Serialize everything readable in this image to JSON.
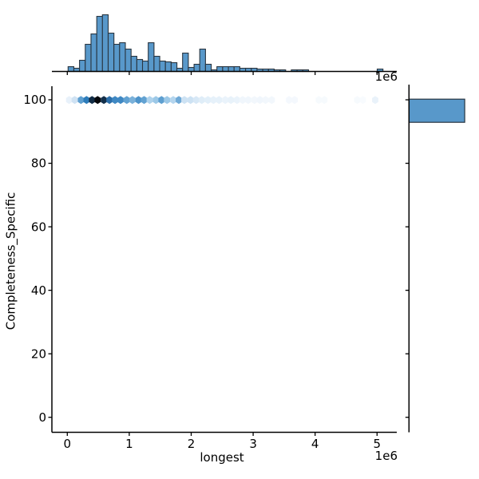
{
  "figure": {
    "background": "#ffffff"
  },
  "palette": {
    "bar_fill": "#5898ca",
    "bar_edge": "#293540",
    "axis_color": "#000000",
    "text_color": "#000000"
  },
  "axes": {
    "xlabel": "longest",
    "ylabel": "Completeness_Specific",
    "x_offset_text": "1e6",
    "top_marginal_offset_text": "1e6",
    "x_tick_labels": [
      "0",
      "1",
      "2",
      "3",
      "4",
      "5"
    ],
    "x_tick_values": [
      0,
      1,
      2,
      3,
      4,
      5
    ],
    "y_tick_labels": [
      "0",
      "20",
      "40",
      "60",
      "80",
      "100"
    ],
    "y_tick_values": [
      0,
      20,
      40,
      60,
      80,
      100
    ],
    "x_unit_multiplier": "1e6",
    "x_range": [
      -0.25,
      5.32
    ],
    "y_range": [
      -4.7,
      104.3
    ],
    "grid": "off",
    "legend": "none",
    "title": ""
  },
  "chart_data": [
    {
      "type": "scatter",
      "subtype": "hexbin_row",
      "name": "joint-hexbin",
      "xlabel": "longest",
      "ylabel": "Completeness_Specific",
      "x_units": "1e6",
      "y_value": 100,
      "points": [
        [
          0.03,
          "#e8f1fa"
        ],
        [
          0.12,
          "#cfe2f3"
        ],
        [
          0.22,
          "#5e9fd0"
        ],
        [
          0.31,
          "#2d7cba"
        ],
        [
          0.4,
          "#112c46"
        ],
        [
          0.49,
          "#06090d"
        ],
        [
          0.59,
          "#14304b"
        ],
        [
          0.68,
          "#2c6ea9"
        ],
        [
          0.77,
          "#3f88c3"
        ],
        [
          0.86,
          "#3f88c3"
        ],
        [
          0.96,
          "#62a2d2"
        ],
        [
          1.05,
          "#7ab1da"
        ],
        [
          1.15,
          "#4e94ca"
        ],
        [
          1.24,
          "#62a2d2"
        ],
        [
          1.33,
          "#aed2ec"
        ],
        [
          1.43,
          "#9cc8e7"
        ],
        [
          1.52,
          "#5e9fd0"
        ],
        [
          1.61,
          "#9cc8e7"
        ],
        [
          1.71,
          "#b4d5ee"
        ],
        [
          1.8,
          "#6fa9d6"
        ],
        [
          1.89,
          "#cde2f3"
        ],
        [
          1.99,
          "#cde2f3"
        ],
        [
          2.08,
          "#d7e8f6"
        ],
        [
          2.17,
          "#dfedf8"
        ],
        [
          2.27,
          "#e2eff9"
        ],
        [
          2.36,
          "#e6f1fa"
        ],
        [
          2.45,
          "#e6f1fa"
        ],
        [
          2.55,
          "#eaf3fb"
        ],
        [
          2.64,
          "#e8f2fa"
        ],
        [
          2.74,
          "#eaf3fb"
        ],
        [
          2.83,
          "#f0f6fc"
        ],
        [
          2.92,
          "#f0f6fc"
        ],
        [
          3.02,
          "#f2f7fc"
        ],
        [
          3.11,
          "#f0f6fc"
        ],
        [
          3.2,
          "#f2f7fc"
        ],
        [
          3.3,
          "#f2f7fc"
        ],
        [
          3.58,
          "#f4f8fd"
        ],
        [
          3.67,
          "#f4f8fd"
        ],
        [
          4.06,
          "#f6fafd"
        ],
        [
          4.15,
          "#f6fafd"
        ],
        [
          4.68,
          "#f6fafd"
        ],
        [
          4.77,
          "#f8fbfe"
        ],
        [
          4.97,
          "#e9f2fa"
        ]
      ]
    },
    {
      "type": "bar",
      "subtype": "histogram",
      "name": "top-marginal-histogram",
      "orientation": "vertical",
      "variable": "longest",
      "x_units": "1e6",
      "bin_start": 0.013,
      "bin_width": 0.0924,
      "heights": [
        6,
        4,
        14,
        34,
        47,
        69,
        71,
        48,
        34,
        36,
        28,
        19,
        15,
        13,
        36,
        19,
        13,
        12,
        11,
        4,
        23,
        5,
        9,
        28,
        9,
        2,
        6,
        6,
        6,
        6,
        4,
        4,
        4,
        3,
        3,
        3,
        2,
        2,
        0,
        2,
        2,
        2,
        0,
        0,
        0,
        0,
        0,
        0,
        0,
        0,
        0,
        0,
        0,
        0,
        3
      ]
    },
    {
      "type": "bar",
      "subtype": "histogram",
      "name": "right-marginal-histogram",
      "orientation": "horizontal",
      "variable": "Completeness_Specific",
      "bins": [
        {
          "from": 92.9,
          "to": 100.2,
          "length_frac": 0.93
        }
      ]
    }
  ]
}
